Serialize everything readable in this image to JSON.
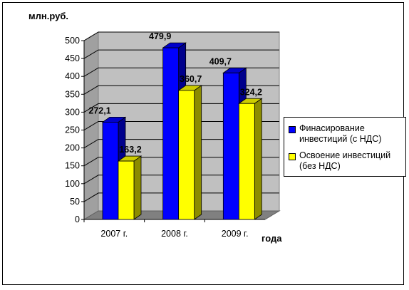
{
  "chart_data": {
    "type": "bar",
    "categories": [
      "2007 г.",
      "2008 г.",
      "2009 г."
    ],
    "series": [
      {
        "name": "Финасирование инвестиций (с НДС)",
        "values": [
          272.1,
          479.9,
          409.7
        ],
        "color": "#0000ff"
      },
      {
        "name": "Освоение инвестиций (без НДС)",
        "values": [
          163.2,
          360.7,
          324.2
        ],
        "color": "#ffff00"
      }
    ],
    "value_labels": [
      [
        "272,1",
        "479,9",
        "409,7"
      ],
      [
        "163,2",
        "360,7",
        "324,2"
      ]
    ],
    "ylabel": "млн.руб.",
    "xlabel": "года",
    "ylim": [
      0,
      500
    ],
    "yticks": [
      "0",
      "50",
      "100",
      "150",
      "200",
      "250",
      "300",
      "350",
      "400",
      "450",
      "500"
    ],
    "grid": true,
    "legend_position": "right",
    "style": "3d",
    "wall_color": "#c0c0c0"
  }
}
